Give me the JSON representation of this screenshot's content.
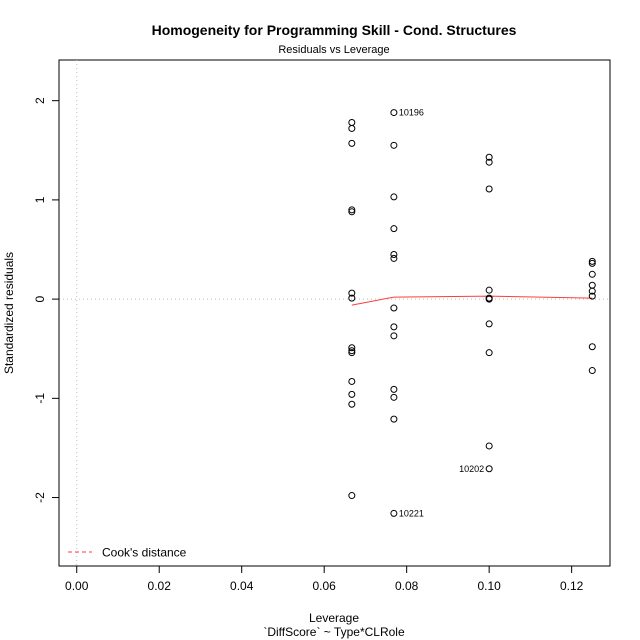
{
  "chart_data": {
    "type": "scatter",
    "title": "Homogeneity for Programming Skill - Cond. Structures",
    "subtitle": "Residuals vs Leverage",
    "xlabel": "Leverage",
    "xlabel2": "`DiffScore` ~ Type*CLRole",
    "ylabel": "Standardized residuals",
    "xlim": [
      -0.0043,
      0.1293
    ],
    "ylim": [
      -2.69,
      2.41
    ],
    "x_ticks": [
      0.0,
      0.02,
      0.04,
      0.06,
      0.08,
      0.1,
      0.12
    ],
    "x_tick_labels": [
      "0.00",
      "0.02",
      "0.04",
      "0.06",
      "0.08",
      "0.10",
      "0.12"
    ],
    "y_ticks": [
      -2,
      -1,
      0,
      1,
      2
    ],
    "y_tick_labels": [
      "-2",
      "-1",
      "0",
      "1",
      "2"
    ],
    "grid": false,
    "points": [
      {
        "x": 0.0667,
        "y": 1.78
      },
      {
        "x": 0.0667,
        "y": 1.72
      },
      {
        "x": 0.0667,
        "y": 1.57
      },
      {
        "x": 0.0667,
        "y": 0.9
      },
      {
        "x": 0.0667,
        "y": 0.88
      },
      {
        "x": 0.0667,
        "y": 0.06
      },
      {
        "x": 0.0667,
        "y": 0.01
      },
      {
        "x": 0.0667,
        "y": -0.49
      },
      {
        "x": 0.0667,
        "y": -0.52
      },
      {
        "x": 0.0667,
        "y": -0.54
      },
      {
        "x": 0.0667,
        "y": -0.83
      },
      {
        "x": 0.0667,
        "y": -0.96
      },
      {
        "x": 0.0667,
        "y": -1.06
      },
      {
        "x": 0.0667,
        "y": -1.98
      },
      {
        "x": 0.0769,
        "y": 1.88
      },
      {
        "x": 0.0769,
        "y": 1.55
      },
      {
        "x": 0.0769,
        "y": 1.03
      },
      {
        "x": 0.0769,
        "y": 0.71
      },
      {
        "x": 0.0769,
        "y": 0.45
      },
      {
        "x": 0.0769,
        "y": 0.41
      },
      {
        "x": 0.0769,
        "y": -0.09
      },
      {
        "x": 0.0769,
        "y": -0.28
      },
      {
        "x": 0.0769,
        "y": -0.37
      },
      {
        "x": 0.0769,
        "y": -0.91
      },
      {
        "x": 0.0769,
        "y": -0.99
      },
      {
        "x": 0.0769,
        "y": -1.21
      },
      {
        "x": 0.0769,
        "y": -2.16
      },
      {
        "x": 0.1,
        "y": 1.43
      },
      {
        "x": 0.1,
        "y": 1.38
      },
      {
        "x": 0.1,
        "y": 1.11
      },
      {
        "x": 0.1,
        "y": 0.09
      },
      {
        "x": 0.1,
        "y": 0.01
      },
      {
        "x": 0.1,
        "y": 0.0
      },
      {
        "x": 0.1,
        "y": -0.25
      },
      {
        "x": 0.1,
        "y": -0.54
      },
      {
        "x": 0.1,
        "y": -1.48
      },
      {
        "x": 0.1,
        "y": -1.71
      },
      {
        "x": 0.125,
        "y": 0.38
      },
      {
        "x": 0.125,
        "y": 0.36
      },
      {
        "x": 0.125,
        "y": 0.25
      },
      {
        "x": 0.125,
        "y": 0.14
      },
      {
        "x": 0.125,
        "y": 0.08
      },
      {
        "x": 0.125,
        "y": 0.03
      },
      {
        "x": 0.125,
        "y": -0.48
      },
      {
        "x": 0.125,
        "y": -0.72
      }
    ],
    "labeled_points": [
      {
        "label": "10196",
        "x": 0.0769,
        "y": 1.88,
        "side": "right"
      },
      {
        "label": "10202",
        "x": 0.1,
        "y": -1.71,
        "side": "left"
      },
      {
        "label": "10221",
        "x": 0.0769,
        "y": -2.16,
        "side": "right"
      }
    ],
    "smooth_line": {
      "color": "#ff3b3b",
      "x": [
        0.0667,
        0.0769,
        0.1,
        0.125
      ],
      "y": [
        -0.06,
        0.02,
        0.03,
        0.01
      ]
    },
    "reference_lines": {
      "h": 0,
      "v": 0
    },
    "legend": {
      "position": "bottom-left",
      "entries": [
        {
          "label": "Cook's distance",
          "color": "#ff3b3b",
          "style": "dashed"
        }
      ]
    }
  }
}
